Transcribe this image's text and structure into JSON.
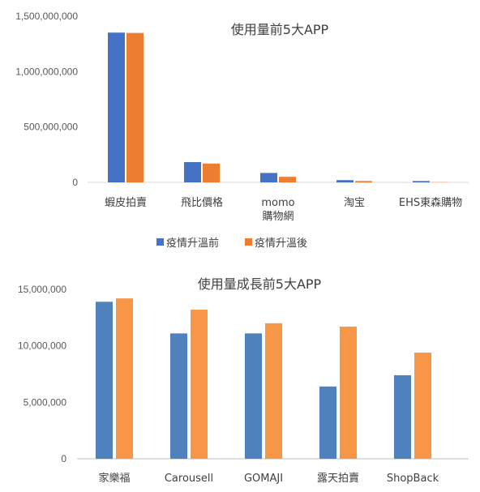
{
  "chart_data": [
    {
      "type": "bar",
      "title": "使用量前5大APP",
      "categories": [
        "蝦皮拍賣",
        "飛比價格",
        "momo\n購物網",
        "淘宝",
        "EHS東森購物"
      ],
      "series": [
        {
          "name": "疫情升溫前",
          "color": "#4472C4",
          "values": [
            1352000000,
            183000000,
            85000000,
            20000000,
            12000000
          ]
        },
        {
          "name": "疫情升溫後",
          "color": "#ED7D31",
          "values": [
            1349000000,
            170000000,
            50000000,
            12000000,
            2000000
          ]
        }
      ],
      "y_ticks": [
        "1,500,000,000",
        "1,000,000,000",
        "500,000,000",
        "0"
      ],
      "ylim": [
        0,
        1500000000
      ],
      "grid": false,
      "legend": "bottom"
    },
    {
      "type": "bar",
      "title": "使用量成長前5大APP",
      "categories": [
        "家樂福",
        "Carousell",
        "GOMAJI",
        "露天拍賣",
        "ShopBack"
      ],
      "series": [
        {
          "color": "#4F81BD",
          "values": [
            13900000,
            11100000,
            11100000,
            6400000,
            7400000
          ]
        },
        {
          "color": "#F79646",
          "values": [
            14200000,
            13200000,
            12000000,
            11700000,
            9400000
          ]
        }
      ],
      "y_ticks": [
        "15,000,000",
        "10,000,000",
        "5,000,000",
        "0"
      ],
      "ylim": [
        0,
        15000000
      ],
      "grid": false,
      "legend": "none"
    }
  ]
}
